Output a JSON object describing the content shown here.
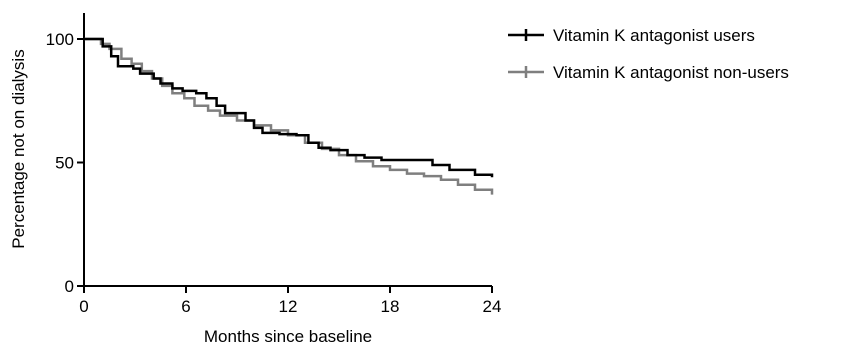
{
  "chart_data": {
    "type": "line",
    "subtype": "kaplan-meier step",
    "xlabel": "Months since baseline",
    "ylabel": "Percentage not on dialysis",
    "xlim": [
      0,
      24
    ],
    "ylim": [
      0,
      100
    ],
    "xticks": [
      0,
      6,
      12,
      18,
      24
    ],
    "yticks": [
      0,
      50,
      100
    ],
    "grid": false,
    "legend_position": "top-right",
    "series": [
      {
        "name": "Vitamin K antagonist users",
        "color": "#000000",
        "points": [
          [
            0,
            100
          ],
          [
            1,
            100
          ],
          [
            1.1,
            97
          ],
          [
            1.6,
            93
          ],
          [
            2,
            89
          ],
          [
            2.9,
            88
          ],
          [
            3.3,
            86
          ],
          [
            4.1,
            84
          ],
          [
            4.5,
            82
          ],
          [
            5.2,
            80
          ],
          [
            5.8,
            79
          ],
          [
            6.6,
            78
          ],
          [
            7.2,
            76
          ],
          [
            7.8,
            73
          ],
          [
            8.3,
            70
          ],
          [
            9.5,
            67
          ],
          [
            10,
            64
          ],
          [
            10.5,
            62
          ],
          [
            11.5,
            61.5
          ],
          [
            12.5,
            61
          ],
          [
            13.2,
            58
          ],
          [
            13.8,
            56
          ],
          [
            14.5,
            55
          ],
          [
            15.5,
            53
          ],
          [
            16.5,
            52
          ],
          [
            17.5,
            51
          ],
          [
            20.5,
            49
          ],
          [
            21.5,
            47
          ],
          [
            23,
            45
          ],
          [
            24,
            44
          ]
        ]
      },
      {
        "name": "Vitamin K antagonist non-users",
        "color": "#7f7f7f",
        "points": [
          [
            0,
            100
          ],
          [
            0.8,
            100
          ],
          [
            1,
            98
          ],
          [
            1.5,
            96
          ],
          [
            2.2,
            92
          ],
          [
            2.8,
            90
          ],
          [
            3.4,
            87
          ],
          [
            4,
            84
          ],
          [
            4.6,
            81
          ],
          [
            5.2,
            78
          ],
          [
            5.9,
            76
          ],
          [
            6.5,
            73
          ],
          [
            7.3,
            71
          ],
          [
            8,
            69
          ],
          [
            9,
            67
          ],
          [
            10,
            65
          ],
          [
            11,
            63
          ],
          [
            12,
            61
          ],
          [
            13,
            58
          ],
          [
            14,
            55.5
          ],
          [
            15,
            53
          ],
          [
            16,
            50.5
          ],
          [
            17,
            48.5
          ],
          [
            18,
            47
          ],
          [
            19,
            45.5
          ],
          [
            20,
            44.5
          ],
          [
            21,
            43
          ],
          [
            22,
            41
          ],
          [
            23,
            39
          ],
          [
            24,
            37
          ]
        ]
      }
    ]
  }
}
